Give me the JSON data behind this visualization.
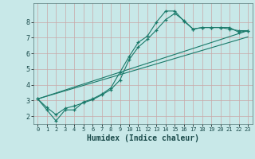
{
  "xlabel": "Humidex (Indice chaleur)",
  "background_color": "#c8e8e8",
  "grid_color": "#c8a8a8",
  "line_color": "#1a7a6a",
  "xlim": [
    -0.5,
    23.5
  ],
  "ylim": [
    1.5,
    9.2
  ],
  "yticks": [
    2,
    3,
    4,
    5,
    6,
    7,
    8
  ],
  "xticks": [
    0,
    1,
    2,
    3,
    4,
    5,
    6,
    7,
    8,
    9,
    10,
    11,
    12,
    13,
    14,
    15,
    16,
    17,
    18,
    19,
    20,
    21,
    22,
    23
  ],
  "series1_x": [
    0,
    1,
    2,
    3,
    4,
    5,
    6,
    7,
    8,
    9,
    10,
    11,
    12,
    13,
    14,
    15,
    16,
    17,
    18,
    19,
    20,
    21,
    22,
    23
  ],
  "series1_y": [
    3.1,
    2.4,
    1.7,
    2.4,
    2.4,
    2.9,
    3.1,
    3.4,
    3.8,
    4.8,
    5.8,
    6.7,
    7.1,
    8.0,
    8.7,
    8.7,
    8.05,
    7.55,
    7.65,
    7.65,
    7.65,
    7.55,
    7.45,
    7.45
  ],
  "series2_x": [
    0,
    1,
    2,
    3,
    4,
    5,
    6,
    7,
    8,
    9,
    10,
    11,
    12,
    13,
    14,
    15,
    16,
    17,
    18,
    19,
    20,
    21,
    22,
    23
  ],
  "series2_y": [
    3.1,
    2.55,
    2.1,
    2.5,
    2.65,
    2.85,
    3.05,
    3.35,
    3.7,
    4.3,
    5.6,
    6.4,
    6.9,
    7.5,
    8.15,
    8.55,
    8.1,
    7.55,
    7.65,
    7.65,
    7.65,
    7.65,
    7.35,
    7.45
  ],
  "series3_x": [
    0,
    23
  ],
  "series3_y": [
    3.1,
    7.45
  ],
  "series4_x": [
    0,
    23
  ],
  "series4_y": [
    3.1,
    7.05
  ]
}
